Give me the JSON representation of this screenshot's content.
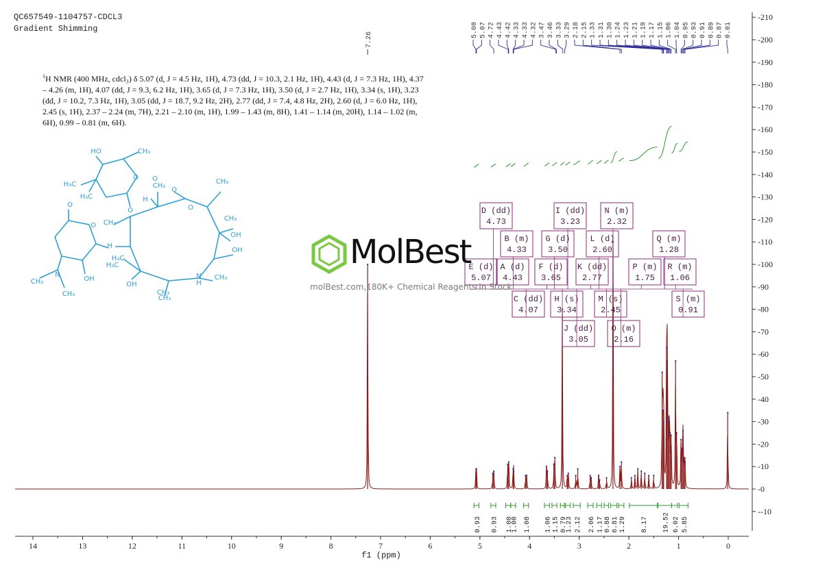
{
  "header": {
    "sample_id": "QC657549-1104757-CDCL3",
    "method": "Gradient Shimming"
  },
  "description": {
    "prefix_sup": "1",
    "text": "H NMR (400 MHz, cdcl₃) δ 5.07 (d, J = 4.5 Hz, 1H), 4.73 (dd, J = 10.3, 2.1 Hz, 1H), 4.43 (d, J = 7.3 Hz, 1H), 4.37 – 4.26 (m, 1H), 4.07 (dd, J = 9.3, 6.2 Hz, 1H), 3.65 (d, J = 7.3 Hz, 1H), 3.50 (d, J = 2.7 Hz, 1H), 3.34 (s, 1H), 3.23 (dd, J = 10.2, 7.3 Hz, 1H), 3.05 (dd, J = 18.7, 9.2 Hz, 2H), 2.77 (dd, J = 7.4, 4.8 Hz, 2H), 2.60 (d, J = 6.0 Hz, 1H), 2.45 (s, 1H), 2.37 – 2.24 (m, 7H), 2.21 – 2.10 (m, 1H), 1.99 – 1.43 (m, 8H), 1.41 – 1.14 (m, 20H), 1.14 – 1.02 (m, 6H), 0.99 – 0.81 (m, 6H)."
  },
  "watermark": {
    "name": "MolBest",
    "tagline": "molBest.com,180K+ Chemical Reagents In Stock"
  },
  "molecule_labels": [
    "HO",
    "CH₃",
    "H₃C",
    "O",
    "H₃C",
    "O",
    "O",
    "H",
    "CH₃",
    "O",
    "CH₃",
    "O",
    "CH₃",
    "CH₃",
    "OH",
    "O",
    "OH",
    "CH₃",
    "O",
    "H",
    "H₃C",
    "H₃C",
    "N",
    "CH₃",
    "OH",
    "OH",
    "CH₃",
    "N",
    "H",
    "CH₃",
    "CH₃"
  ],
  "colors": {
    "spectrum": "#8b1a1a",
    "peak_marker": "#2b2b99",
    "integral": "#2a9a2a",
    "multiplet_box": "#8b2a7a",
    "axis": "#333333",
    "structure": "#2b9fd6",
    "watermark_green": "#7ac943"
  },
  "chart_data": {
    "type": "line",
    "title": "",
    "xlabel": "f1 (ppm)",
    "ylabel": "",
    "xlim": [
      14.5,
      -0.4
    ],
    "ylim": [
      -20,
      212
    ],
    "x_reversed": true,
    "grid": false,
    "x_ticks": [
      14,
      13,
      12,
      11,
      10,
      9,
      8,
      7,
      6,
      5,
      4,
      3,
      2,
      1,
      0
    ],
    "y_ticks": [
      -10,
      0,
      10,
      20,
      30,
      40,
      50,
      60,
      70,
      80,
      90,
      100,
      110,
      120,
      130,
      140,
      150,
      160,
      170,
      180,
      190,
      200,
      210
    ],
    "peak_labels_left": [
      "7.26"
    ],
    "peak_labels_right": [
      "5.08",
      "5.07",
      "4.72",
      "4.43",
      "4.42",
      "4.33",
      "4.33",
      "4.32",
      "3.47",
      "3.46",
      "3.33",
      "3.29",
      "2.18",
      "2.15",
      "1.33",
      "1.31",
      "1.30",
      "1.24",
      "1.23",
      "1.21",
      "1.19",
      "1.17",
      "1.15",
      "1.06",
      "1.04",
      "0.95",
      "0.93",
      "0.91",
      "0.89",
      "0.87",
      "0.01"
    ],
    "peaks": [
      {
        "ppm": 7.26,
        "h": 100
      },
      {
        "ppm": 5.08,
        "h": 7
      },
      {
        "ppm": 5.07,
        "h": 9
      },
      {
        "ppm": 4.74,
        "h": 7
      },
      {
        "ppm": 4.72,
        "h": 8
      },
      {
        "ppm": 4.44,
        "h": 11
      },
      {
        "ppm": 4.42,
        "h": 12
      },
      {
        "ppm": 4.33,
        "h": 9
      },
      {
        "ppm": 4.32,
        "h": 8
      },
      {
        "ppm": 4.08,
        "h": 6
      },
      {
        "ppm": 4.06,
        "h": 6
      },
      {
        "ppm": 3.66,
        "h": 10
      },
      {
        "ppm": 3.64,
        "h": 8
      },
      {
        "ppm": 3.51,
        "h": 11
      },
      {
        "ppm": 3.49,
        "h": 14
      },
      {
        "ppm": 3.34,
        "h": 80
      },
      {
        "ppm": 3.24,
        "h": 6
      },
      {
        "ppm": 3.22,
        "h": 7
      },
      {
        "ppm": 3.07,
        "h": 6
      },
      {
        "ppm": 3.03,
        "h": 9
      },
      {
        "ppm": 2.78,
        "h": 6
      },
      {
        "ppm": 2.76,
        "h": 5
      },
      {
        "ppm": 2.61,
        "h": 6
      },
      {
        "ppm": 2.59,
        "h": 4
      },
      {
        "ppm": 2.45,
        "h": 5
      },
      {
        "ppm": 2.32,
        "h": 110
      },
      {
        "ppm": 2.18,
        "h": 10
      },
      {
        "ppm": 2.15,
        "h": 12
      },
      {
        "ppm": 1.95,
        "h": 5
      },
      {
        "ppm": 1.88,
        "h": 6
      },
      {
        "ppm": 1.82,
        "h": 9
      },
      {
        "ppm": 1.75,
        "h": 8
      },
      {
        "ppm": 1.68,
        "h": 7
      },
      {
        "ppm": 1.6,
        "h": 6
      },
      {
        "ppm": 1.5,
        "h": 6
      },
      {
        "ppm": 1.33,
        "h": 52
      },
      {
        "ppm": 1.31,
        "h": 35
      },
      {
        "ppm": 1.3,
        "h": 30
      },
      {
        "ppm": 1.24,
        "h": 63
      },
      {
        "ppm": 1.23,
        "h": 57
      },
      {
        "ppm": 1.21,
        "h": 32
      },
      {
        "ppm": 1.19,
        "h": 30
      },
      {
        "ppm": 1.17,
        "h": 25
      },
      {
        "ppm": 1.15,
        "h": 24
      },
      {
        "ppm": 1.06,
        "h": 57
      },
      {
        "ppm": 1.04,
        "h": 25
      },
      {
        "ppm": 0.95,
        "h": 22
      },
      {
        "ppm": 0.93,
        "h": 18
      },
      {
        "ppm": 0.91,
        "h": 26
      },
      {
        "ppm": 0.89,
        "h": 14
      },
      {
        "ppm": 0.87,
        "h": 12
      },
      {
        "ppm": 0.01,
        "h": 34
      }
    ],
    "integrals": [
      {
        "from": 5.12,
        "to": 5.02,
        "value": "0.93"
      },
      {
        "from": 4.78,
        "to": 4.68,
        "value": "0.93"
      },
      {
        "from": 4.48,
        "to": 4.38,
        "value": "1.00"
      },
      {
        "from": 4.38,
        "to": 4.28,
        "value": "1.00"
      },
      {
        "from": 4.12,
        "to": 4.02,
        "value": "1.08"
      },
      {
        "from": 3.7,
        "to": 3.6,
        "value": "1.06"
      },
      {
        "from": 3.55,
        "to": 3.45,
        "value": "1.15"
      },
      {
        "from": 3.38,
        "to": 3.3,
        "value": "0.79"
      },
      {
        "from": 3.28,
        "to": 3.18,
        "value": "1.23"
      },
      {
        "from": 3.12,
        "to": 2.98,
        "value": "2.12"
      },
      {
        "from": 2.83,
        "to": 2.72,
        "value": "2.06"
      },
      {
        "from": 2.65,
        "to": 2.55,
        "value": "1.17"
      },
      {
        "from": 2.5,
        "to": 2.41,
        "value": "0.88"
      },
      {
        "from": 2.37,
        "to": 2.24,
        "value": "6.81"
      },
      {
        "from": 2.21,
        "to": 2.1,
        "value": "1.29"
      },
      {
        "from": 1.99,
        "to": 1.43,
        "value": "8.17"
      },
      {
        "from": 1.41,
        "to": 1.14,
        "value": "19.52"
      },
      {
        "from": 1.14,
        "to": 1.02,
        "value": "6.02"
      },
      {
        "from": 0.99,
        "to": 0.81,
        "value": "5.85"
      }
    ],
    "multiplets": [
      {
        "label": "D (dd)",
        "ppm": "4.73"
      },
      {
        "label": "I (dd)",
        "ppm": "3.23"
      },
      {
        "label": "N (m)",
        "ppm": "2.32"
      },
      {
        "label": "B (m)",
        "ppm": "4.33"
      },
      {
        "label": "G (d)",
        "ppm": "3.50"
      },
      {
        "label": "L (d)",
        "ppm": "2.60"
      },
      {
        "label": "Q (m)",
        "ppm": "1.28"
      },
      {
        "label": "E (d)",
        "ppm": "5.07"
      },
      {
        "label": "A (d)",
        "ppm": "4.43"
      },
      {
        "label": "F (d)",
        "ppm": "3.65"
      },
      {
        "label": "K (dd)",
        "ppm": "2.77"
      },
      {
        "label": "P (m)",
        "ppm": "1.75"
      },
      {
        "label": "R (m)",
        "ppm": "1.06"
      },
      {
        "label": "C (dd)",
        "ppm": "4.07"
      },
      {
        "label": "H (s)",
        "ppm": "3.34"
      },
      {
        "label": "M (s)",
        "ppm": "2.45"
      },
      {
        "label": "S (m)",
        "ppm": "0.91"
      },
      {
        "label": "J (dd)",
        "ppm": "3.05"
      },
      {
        "label": "O (m)",
        "ppm": "2.16"
      }
    ]
  }
}
